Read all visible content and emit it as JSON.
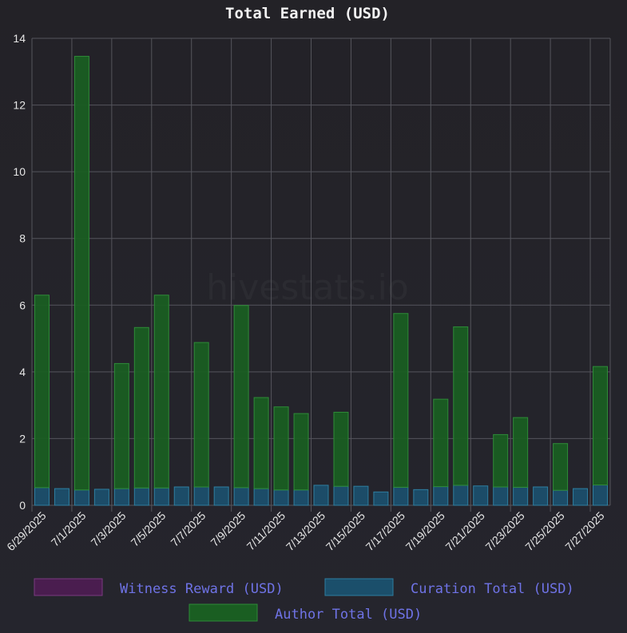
{
  "watermark": "hivestats.io",
  "colors": {
    "witness": "#4a1d4f",
    "witness_border": "#7a3a80",
    "curation": "#1b4f6b",
    "curation_border": "#2e7ea0",
    "author": "#1a5e22",
    "author_border": "#2e8b38",
    "grid": "#55555c"
  },
  "chart_data": {
    "type": "bar",
    "stacked": true,
    "title": "Total Earned (USD)",
    "ylim": [
      0,
      14
    ],
    "yticks": [
      0,
      2,
      4,
      6,
      8,
      10,
      12,
      14
    ],
    "grid": true,
    "legend_position": "bottom",
    "categories": [
      "6/29/2025",
      "6/30/2025",
      "7/1/2025",
      "7/2/2025",
      "7/3/2025",
      "7/4/2025",
      "7/5/2025",
      "7/6/2025",
      "7/7/2025",
      "7/8/2025",
      "7/9/2025",
      "7/10/2025",
      "7/11/2025",
      "7/12/2025",
      "7/13/2025",
      "7/14/2025",
      "7/15/2025",
      "7/16/2025",
      "7/17/2025",
      "7/18/2025",
      "7/19/2025",
      "7/20/2025",
      "7/21/2025",
      "7/22/2025",
      "7/23/2025",
      "7/24/2025",
      "7/25/2025",
      "7/26/2025",
      "7/27/2025"
    ],
    "x_tick_labels": [
      "6/29/2025",
      "7/1/2025",
      "7/3/2025",
      "7/5/2025",
      "7/7/2025",
      "7/9/2025",
      "7/11/2025",
      "7/13/2025",
      "7/15/2025",
      "7/17/2025",
      "7/19/2025",
      "7/21/2025",
      "7/23/2025",
      "7/25/2025",
      "7/27/2025"
    ],
    "series": [
      {
        "name": "Witness Reward (USD)",
        "values": [
          0,
          0,
          0,
          0,
          0,
          0,
          0,
          0,
          0,
          0,
          0,
          0,
          0,
          0,
          0,
          0,
          0,
          0,
          0,
          0,
          0,
          0,
          0,
          0,
          0,
          0,
          0,
          0,
          0
        ]
      },
      {
        "name": "Curation Total (USD)",
        "values": [
          0.53,
          0.5,
          0.46,
          0.48,
          0.5,
          0.52,
          0.52,
          0.55,
          0.55,
          0.55,
          0.53,
          0.5,
          0.46,
          0.46,
          0.6,
          0.57,
          0.57,
          0.4,
          0.54,
          0.47,
          0.56,
          0.6,
          0.58,
          0.55,
          0.54,
          0.55,
          0.45,
          0.5,
          0.61
        ]
      },
      {
        "name": "Author Total (USD)",
        "values": [
          5.77,
          0,
          13.0,
          0,
          3.75,
          4.81,
          5.78,
          0,
          4.33,
          0,
          5.46,
          2.73,
          2.49,
          2.29,
          0,
          2.22,
          0,
          0,
          5.21,
          0,
          2.62,
          4.75,
          0,
          1.57,
          2.09,
          0,
          1.4,
          0,
          3.55
        ]
      }
    ]
  }
}
